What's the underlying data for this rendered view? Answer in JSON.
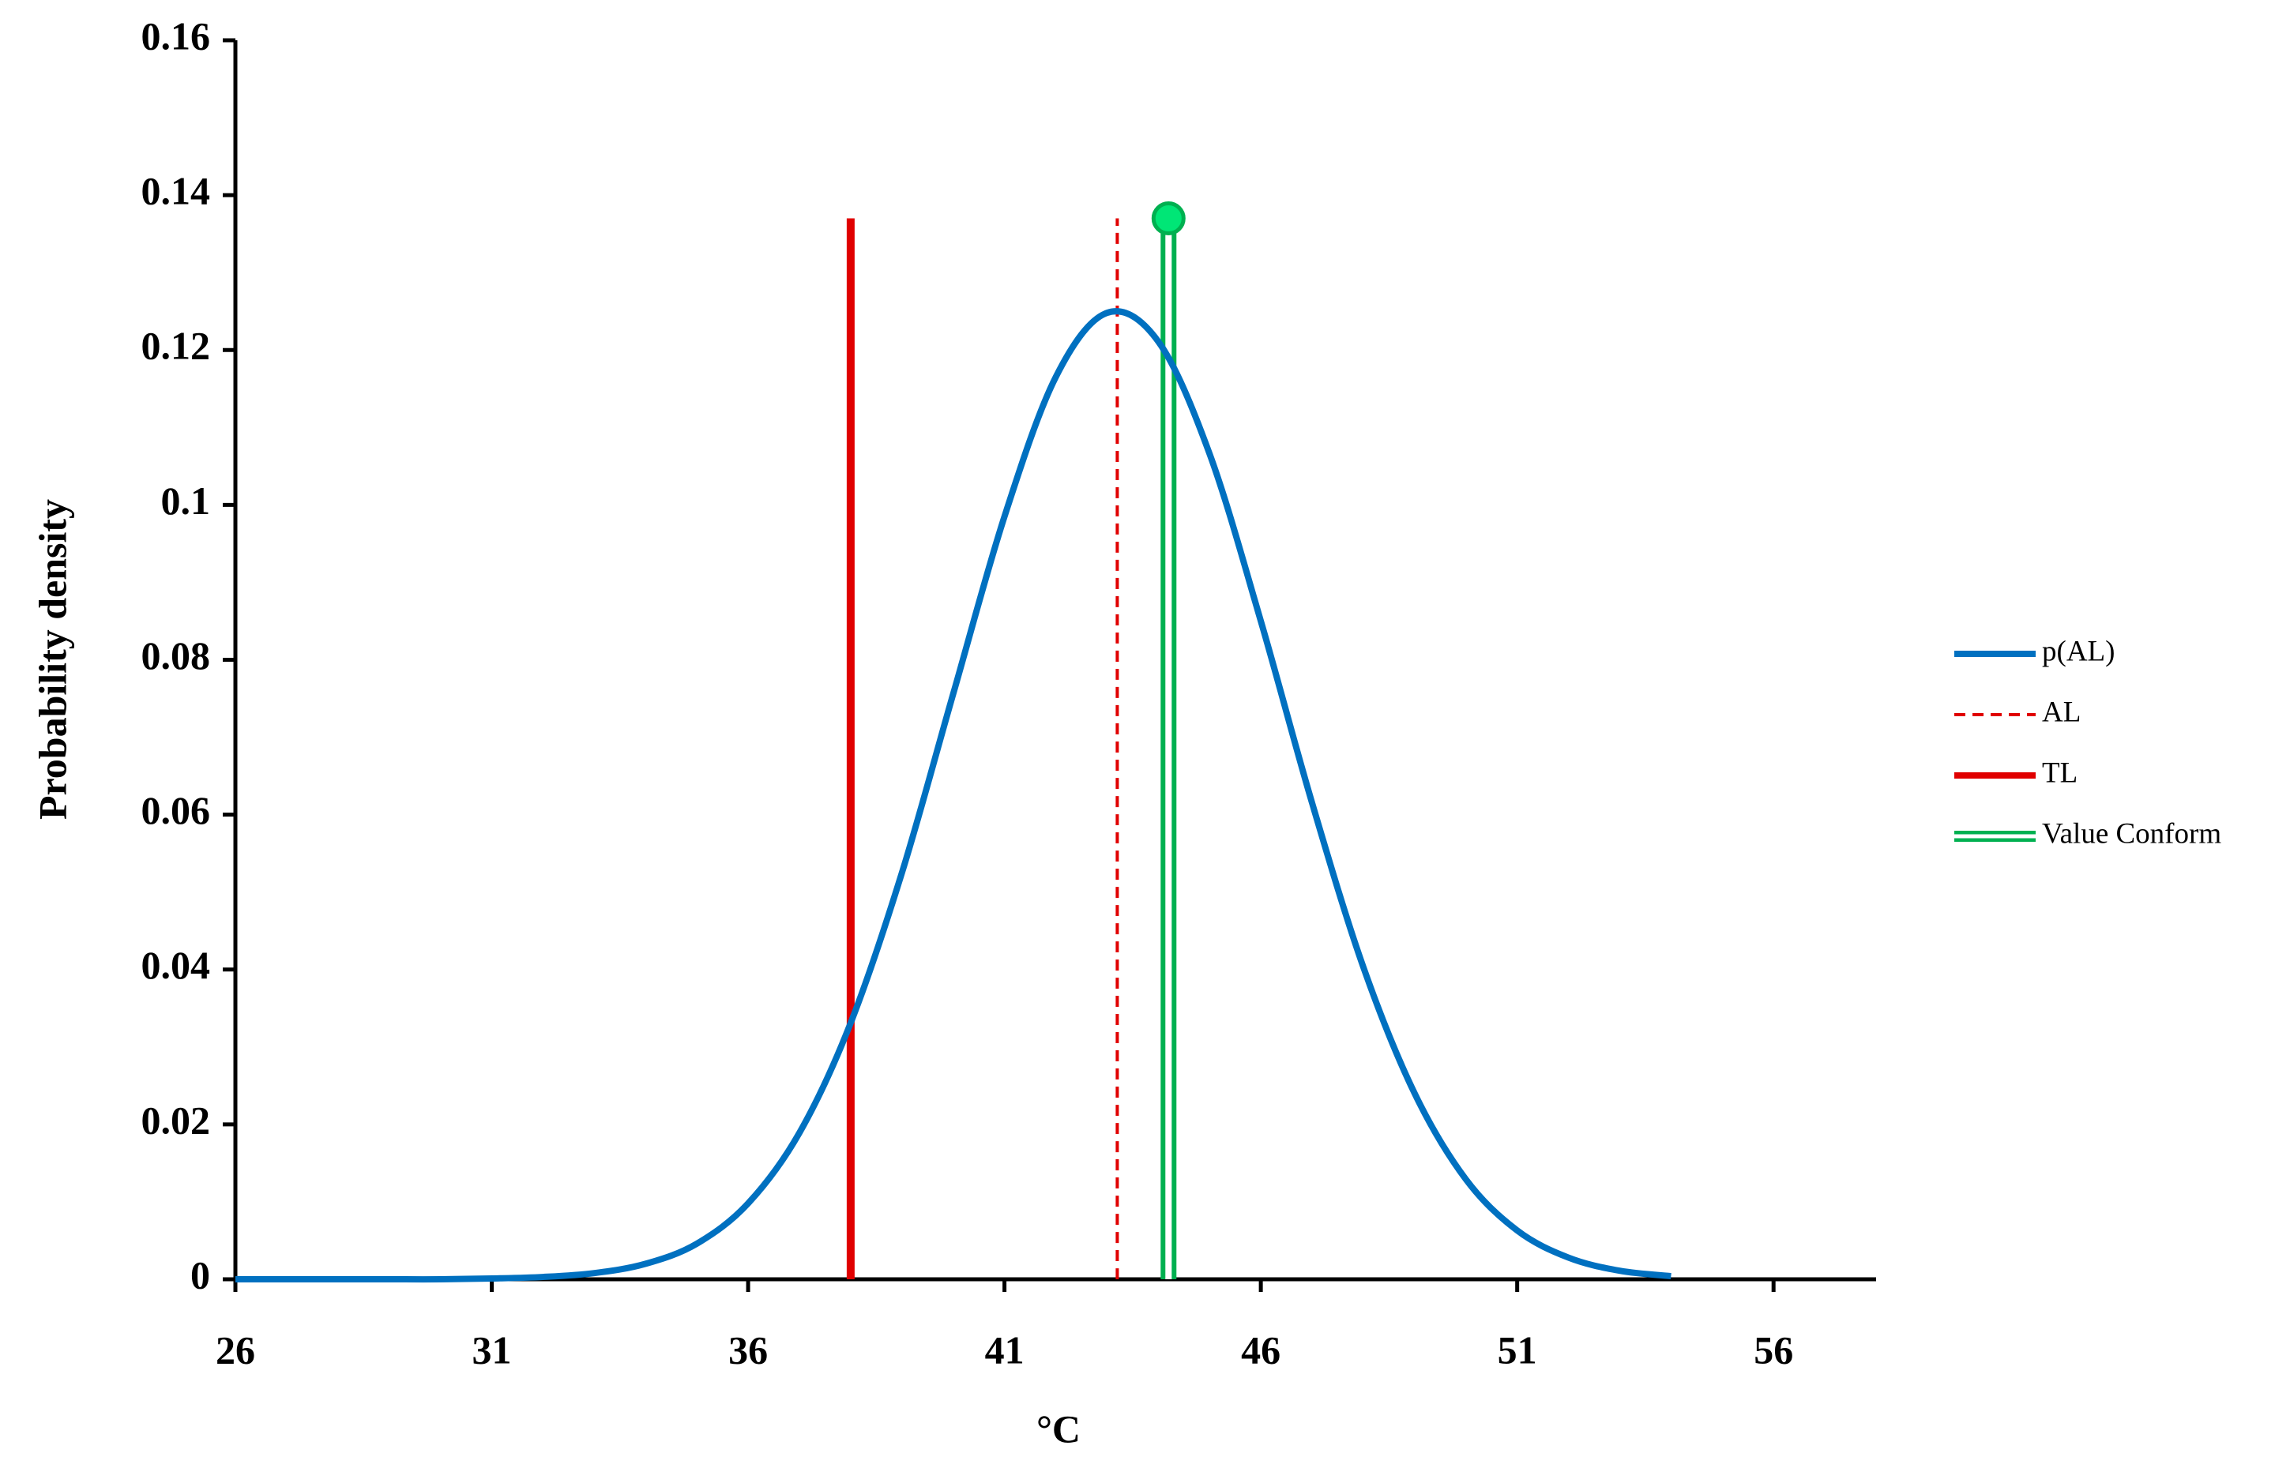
{
  "chart_data": {
    "type": "line",
    "xlabel": "°C",
    "ylabel": "Probability density",
    "xlim": [
      26,
      58
    ],
    "xticks": [
      26,
      31,
      36,
      41,
      46,
      51,
      56
    ],
    "ylim": [
      0,
      0.16
    ],
    "yticks": [
      0,
      0.02,
      0.04,
      0.06,
      0.08,
      0.1,
      0.12,
      0.14,
      0.16
    ],
    "legend": "right",
    "series": [
      {
        "name": "p(AL)",
        "color": "#0070c0",
        "style": "solid",
        "x": [
          26,
          27,
          28,
          29,
          30,
          31,
          32,
          33,
          34,
          35,
          36,
          37,
          38,
          39,
          40,
          41,
          42,
          43,
          44,
          45,
          46,
          47,
          48,
          49,
          50,
          51,
          52,
          53,
          54
        ],
        "values": [
          0,
          0,
          0,
          0,
          0,
          0.0001,
          0.0003,
          0.0008,
          0.002,
          0.0046,
          0.0098,
          0.0189,
          0.0331,
          0.0525,
          0.0756,
          0.0985,
          0.1165,
          0.1248,
          0.1211,
          0.1066,
          0.085,
          0.0615,
          0.0403,
          0.024,
          0.0129,
          0.0063,
          0.0028,
          0.0011,
          0.0004
        ]
      },
      {
        "name": "AL",
        "color": "#e00000",
        "style": "dashed",
        "x": [
          43.2,
          43.2
        ],
        "values": [
          0,
          0.137
        ]
      },
      {
        "name": "TL",
        "color": "#e00000",
        "style": "thick",
        "x": [
          38,
          38
        ],
        "values": [
          0,
          0.137
        ]
      },
      {
        "name": "Value Conform",
        "color": "#00b050",
        "style": "double",
        "marker_color": "#00e676",
        "x": [
          44.2,
          44.2
        ],
        "values": [
          0,
          0.137
        ]
      }
    ]
  }
}
